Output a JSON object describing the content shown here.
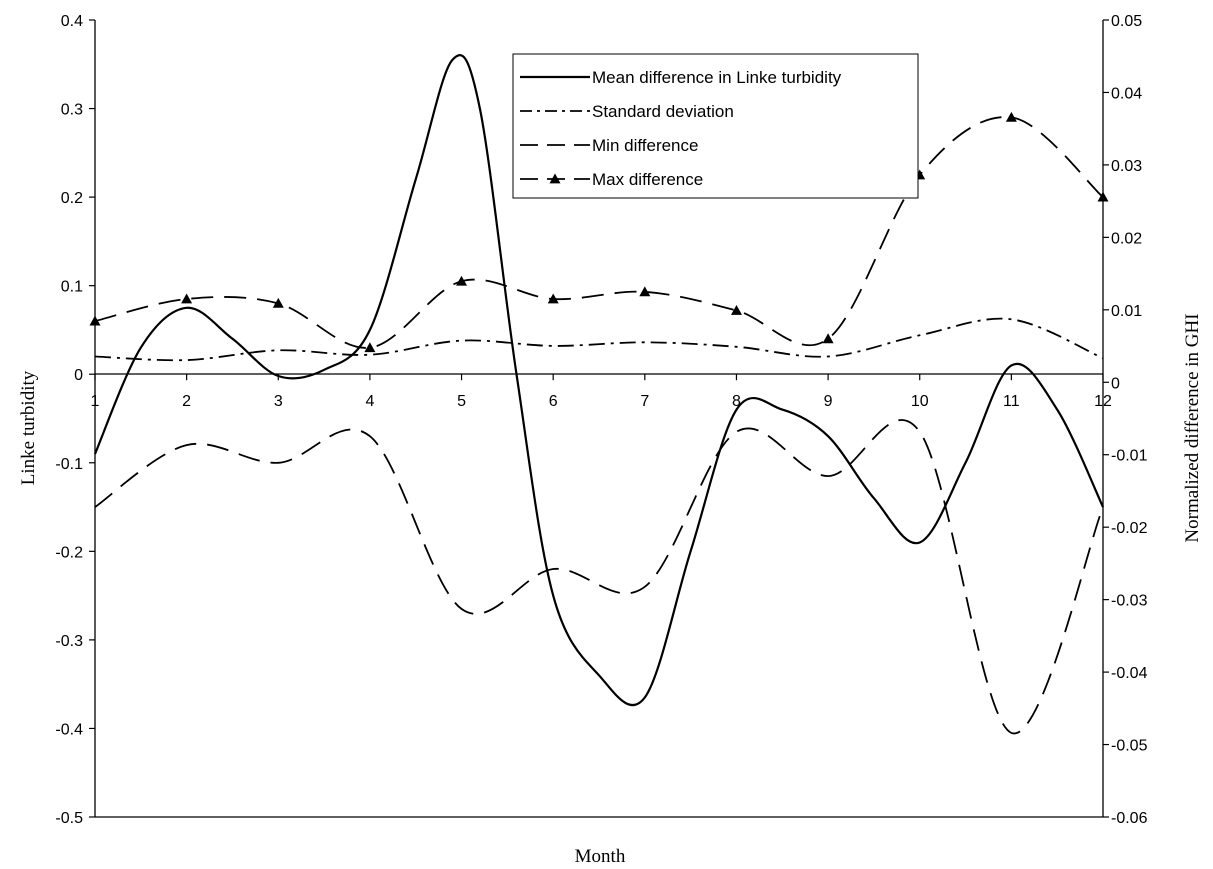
{
  "chart_data": {
    "type": "line",
    "xlabel": "Month",
    "ylabel": "Linke turbidity",
    "y2label": "Normalized difference in GHI",
    "x": [
      1,
      2,
      3,
      4,
      5,
      6,
      7,
      8,
      9,
      10,
      11,
      12
    ],
    "xlim": [
      1,
      12
    ],
    "ylim": [
      -0.5,
      0.4
    ],
    "y2lim": [
      -0.06,
      0.05
    ],
    "yticks": [
      "0.4",
      "0.3",
      "0.2",
      "0.1",
      "0",
      "-0.1",
      "-0.2",
      "-0.3",
      "-0.4",
      "-0.5"
    ],
    "y2ticks": [
      "0.05",
      "0.04",
      "0.03",
      "0.02",
      "0.01",
      "0",
      "-0.01",
      "-0.02",
      "-0.03",
      "-0.04",
      "-0.05",
      "-0.06"
    ],
    "xticks": [
      "1",
      "2",
      "3",
      "4",
      "5",
      "6",
      "7",
      "8",
      "9",
      "10",
      "11",
      "12"
    ],
    "legend_position": "top-center",
    "series": [
      {
        "name": "Mean difference in Linke turbidity",
        "axis": "left",
        "style": "solid",
        "x": [
          1,
          1.5,
          2,
          2.5,
          3,
          3.5,
          4,
          4.5,
          4.9,
          5.2,
          5.6,
          6,
          6.5,
          7,
          7.5,
          8,
          8.5,
          9,
          9.5,
          10,
          10.5,
          11,
          11.5,
          12
        ],
        "values": [
          -0.09,
          0.03,
          0.075,
          0.04,
          -0.002,
          0.005,
          0.05,
          0.22,
          0.355,
          0.3,
          0.0,
          -0.25,
          -0.34,
          -0.365,
          -0.2,
          -0.04,
          -0.04,
          -0.07,
          -0.14,
          -0.19,
          -0.1,
          0.01,
          -0.04,
          -0.15
        ]
      },
      {
        "name": "Standard deviation",
        "axis": "left",
        "style": "dashdot",
        "x": [
          1,
          2,
          3,
          4,
          5,
          6,
          7,
          8,
          9,
          10,
          11,
          12
        ],
        "values": [
          0.02,
          0.016,
          0.027,
          0.022,
          0.038,
          0.032,
          0.036,
          0.031,
          0.02,
          0.044,
          0.062,
          0.018
        ]
      },
      {
        "name": "Min difference",
        "axis": "left",
        "style": "dashed",
        "x": [
          1,
          2,
          3,
          4,
          5,
          6,
          7,
          8,
          9,
          10,
          11,
          12
        ],
        "values": [
          -0.15,
          -0.08,
          -0.1,
          -0.07,
          -0.265,
          -0.22,
          -0.24,
          -0.065,
          -0.115,
          -0.065,
          -0.405,
          -0.15
        ]
      },
      {
        "name": "Max difference",
        "axis": "left",
        "style": "dashed-triangle",
        "x": [
          1,
          2,
          3,
          4,
          5,
          6,
          7,
          8,
          9,
          10,
          11,
          12
        ],
        "values": [
          0.06,
          0.085,
          0.08,
          0.03,
          0.105,
          0.085,
          0.093,
          0.072,
          0.04,
          0.225,
          0.29,
          0.2
        ]
      }
    ]
  }
}
